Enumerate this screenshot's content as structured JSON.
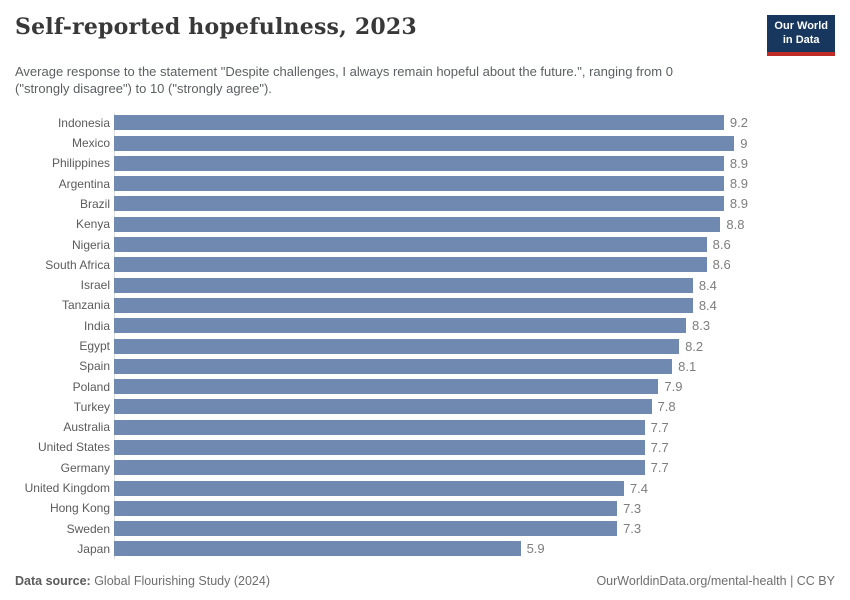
{
  "header": {
    "title": "Self-reported hopefulness, 2023",
    "subtitle": "Average response to the statement \"Despite challenges, I always remain hopeful about the future.\", ranging from 0 (\"strongly disagree\") to 10 (\"strongly agree\").",
    "logo": {
      "line1": "Our World",
      "line2": "in Data"
    }
  },
  "chart_data": {
    "type": "bar",
    "orientation": "horizontal",
    "title": "Self-reported hopefulness, 2023",
    "xlabel": "",
    "ylabel": "",
    "value_range": [
      0,
      10
    ],
    "scale_max": 9.2,
    "grid": false,
    "legend": false,
    "categories": [
      "Indonesia",
      "Mexico",
      "Philippines",
      "Argentina",
      "Brazil",
      "Kenya",
      "Nigeria",
      "South Africa",
      "Israel",
      "Tanzania",
      "India",
      "Egypt",
      "Spain",
      "Poland",
      "Turkey",
      "Australia",
      "United States",
      "Germany",
      "United Kingdom",
      "Hong Kong",
      "Sweden",
      "Japan"
    ],
    "values": [
      9.2,
      9,
      8.9,
      8.9,
      8.9,
      8.8,
      8.6,
      8.6,
      8.4,
      8.4,
      8.3,
      8.2,
      8.1,
      7.9,
      7.8,
      7.7,
      7.7,
      7.7,
      7.4,
      7.3,
      7.3,
      5.9
    ],
    "display_values": [
      "9.2",
      "9",
      "8.9",
      "8.9",
      "8.9",
      "8.8",
      "8.6",
      "8.6",
      "8.4",
      "8.4",
      "8.3",
      "8.2",
      "8.1",
      "7.9",
      "7.8",
      "7.7",
      "7.7",
      "7.7",
      "7.4",
      "7.3",
      "7.3",
      "5.9"
    ]
  },
  "footer": {
    "source_label": "Data source:",
    "source_text": " Global Flourishing Study (2024)",
    "credit": "OurWorldinData.org/mental-health | CC BY"
  },
  "colors": {
    "bar": "#6f89b0",
    "axis": "#dddddd",
    "logo_bg": "#18375f",
    "logo_stripe": "#bf2b26"
  }
}
